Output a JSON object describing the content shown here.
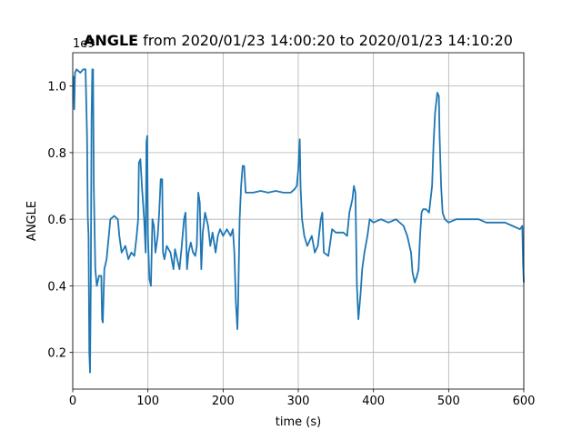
{
  "chart_data": {
    "type": "line",
    "title": {
      "bold": "ANGLE",
      "rest": "from 2020/01/23 14:00:20 to 2020/01/23 14:10:20"
    },
    "xlabel": "time (s)",
    "ylabel": "ANGLE",
    "y_offset_label": "1e9",
    "x": [
      1,
      2,
      3,
      5,
      10,
      14,
      17,
      19,
      20,
      21,
      22,
      23,
      24,
      25,
      26,
      27,
      28,
      30,
      32,
      35,
      38,
      39,
      40,
      42,
      45,
      48,
      50,
      55,
      60,
      62,
      65,
      70,
      74,
      78,
      82,
      85,
      87,
      88,
      90,
      92,
      95,
      97,
      98,
      99,
      100,
      102,
      104,
      106,
      108,
      110,
      113,
      115,
      117,
      119,
      120,
      122,
      125,
      130,
      134,
      136,
      140,
      142,
      145,
      148,
      150,
      152,
      154,
      157,
      160,
      163,
      165,
      167,
      169,
      171,
      173,
      176,
      178,
      180,
      183,
      186,
      190,
      193,
      196,
      200,
      205,
      210,
      213,
      215,
      217,
      219,
      220,
      222,
      224,
      226,
      228,
      230,
      240,
      250,
      260,
      270,
      280,
      290,
      295,
      298,
      300,
      302,
      303,
      305,
      308,
      312,
      318,
      322,
      326,
      330,
      332,
      334,
      340,
      345,
      350,
      360,
      365,
      368,
      372,
      374,
      376,
      378,
      380,
      383,
      385,
      388,
      392,
      395,
      400,
      410,
      420,
      430,
      440,
      445,
      450,
      452,
      455,
      458,
      460,
      462,
      464,
      466,
      470,
      474,
      478,
      480,
      482,
      484,
      485,
      487,
      488,
      490,
      492,
      495,
      500,
      510,
      520,
      530,
      540,
      550,
      560,
      575,
      585,
      595,
      598,
      599,
      600
    ],
    "values": [
      1.03,
      0.93,
      1.04,
      1.05,
      1.04,
      1.05,
      1.05,
      0.85,
      0.61,
      0.55,
      0.2,
      0.14,
      0.4,
      0.9,
      1.05,
      1.05,
      0.7,
      0.45,
      0.4,
      0.43,
      0.43,
      0.3,
      0.29,
      0.45,
      0.48,
      0.55,
      0.6,
      0.61,
      0.6,
      0.55,
      0.5,
      0.52,
      0.48,
      0.5,
      0.49,
      0.55,
      0.6,
      0.77,
      0.78,
      0.7,
      0.6,
      0.5,
      0.83,
      0.85,
      0.55,
      0.42,
      0.4,
      0.6,
      0.58,
      0.5,
      0.55,
      0.62,
      0.72,
      0.72,
      0.5,
      0.48,
      0.52,
      0.5,
      0.45,
      0.51,
      0.47,
      0.45,
      0.52,
      0.6,
      0.62,
      0.45,
      0.5,
      0.53,
      0.5,
      0.49,
      0.52,
      0.68,
      0.65,
      0.45,
      0.56,
      0.62,
      0.6,
      0.58,
      0.52,
      0.56,
      0.5,
      0.55,
      0.57,
      0.55,
      0.57,
      0.55,
      0.57,
      0.5,
      0.35,
      0.27,
      0.35,
      0.6,
      0.7,
      0.76,
      0.76,
      0.68,
      0.68,
      0.685,
      0.68,
      0.685,
      0.68,
      0.68,
      0.69,
      0.7,
      0.75,
      0.84,
      0.7,
      0.6,
      0.55,
      0.52,
      0.55,
      0.5,
      0.52,
      0.6,
      0.62,
      0.5,
      0.49,
      0.57,
      0.56,
      0.56,
      0.55,
      0.62,
      0.66,
      0.7,
      0.68,
      0.4,
      0.3,
      0.38,
      0.45,
      0.5,
      0.55,
      0.6,
      0.59,
      0.6,
      0.59,
      0.6,
      0.58,
      0.55,
      0.5,
      0.44,
      0.41,
      0.43,
      0.45,
      0.55,
      0.62,
      0.63,
      0.63,
      0.62,
      0.7,
      0.83,
      0.92,
      0.96,
      0.98,
      0.97,
      0.85,
      0.7,
      0.62,
      0.6,
      0.59,
      0.6,
      0.6,
      0.6,
      0.6,
      0.59,
      0.59,
      0.59,
      0.58,
      0.57,
      0.58,
      0.47,
      0.41
    ],
    "color": "#1f77b4",
    "xlim": [
      0,
      600
    ],
    "xticks": [
      0,
      100,
      200,
      300,
      400,
      500,
      600
    ],
    "ylim": [
      0.09,
      1.1
    ],
    "yticks": [
      0.2,
      0.4,
      0.6,
      0.8,
      {
        "value": 1,
        "label": "1.0"
      }
    ],
    "grid": true
  }
}
